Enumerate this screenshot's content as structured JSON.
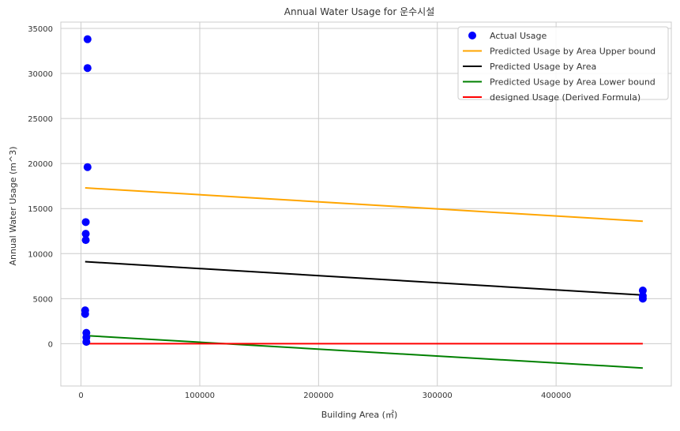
{
  "chart_data": {
    "type": "scatter",
    "title": "Annual Water Usage for 운수시설",
    "xlabel": "Building Area (㎡)",
    "ylabel": "Annual Water Usage (m^3)",
    "xlim": [
      -17000,
      497000
    ],
    "ylim": [
      -4700,
      35700
    ],
    "x_ticks": [
      0,
      100000,
      200000,
      300000,
      400000
    ],
    "x_tick_labels": [
      "0",
      "100000",
      "200000",
      "300000",
      "400000"
    ],
    "y_ticks": [
      0,
      5000,
      10000,
      15000,
      20000,
      25000,
      30000,
      35000
    ],
    "y_tick_labels": [
      "0",
      "5000",
      "10000",
      "15000",
      "20000",
      "25000",
      "30000",
      "35000"
    ],
    "grid": true,
    "legend_position": "top-right",
    "colors": {
      "actual": "#0000ff",
      "upper": "#ffa500",
      "predicted": "#000000",
      "lower": "#008000",
      "designed": "#ff0000",
      "grid": "#cccccc",
      "frame": "#cccccc"
    },
    "series": [
      {
        "name": "Actual Usage",
        "kind": "scatter",
        "color": "#0000ff",
        "x": [
          5500,
          5500,
          5500,
          4000,
          4000,
          4000,
          3500,
          3500,
          4500,
          4500,
          4500,
          473000,
          473000,
          473000
        ],
        "y": [
          33800,
          30600,
          19600,
          13500,
          12200,
          11500,
          3700,
          3300,
          1200,
          700,
          200,
          5900,
          5300,
          5000
        ]
      },
      {
        "name": "Predicted Usage by Area Upper bound",
        "kind": "line",
        "color": "#ffa500",
        "x": [
          3500,
          473000
        ],
        "y": [
          17300,
          13600
        ]
      },
      {
        "name": "Predicted Usage by Area",
        "kind": "line",
        "color": "#000000",
        "x": [
          3500,
          473000
        ],
        "y": [
          9100,
          5400
        ]
      },
      {
        "name": "Predicted Usage by Area Lower bound",
        "kind": "line",
        "color": "#008000",
        "x": [
          3500,
          473000
        ],
        "y": [
          900,
          -2700
        ]
      },
      {
        "name": "designed Usage (Derived Formula)",
        "kind": "line",
        "color": "#ff0000",
        "x": [
          3500,
          473000
        ],
        "y": [
          0,
          0
        ]
      }
    ]
  }
}
